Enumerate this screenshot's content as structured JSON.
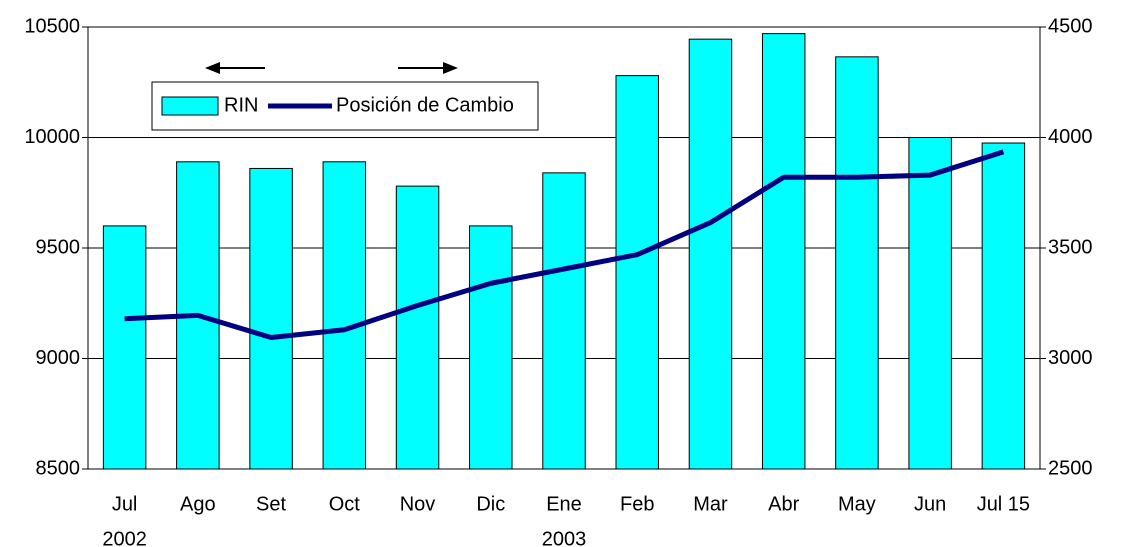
{
  "chart_data": {
    "type": "bar_line",
    "categories": [
      "Jul",
      "Ago",
      "Set",
      "Oct",
      "Nov",
      "Dic",
      "Ene",
      "Feb",
      "Mar",
      "Abr",
      "May",
      "Jun",
      "Jul 15"
    ],
    "x_sublabels": [
      "2002",
      null,
      null,
      null,
      null,
      null,
      "2003",
      null,
      null,
      null,
      null,
      null,
      null
    ],
    "series": [
      {
        "name": "RIN",
        "type": "bar",
        "color": "#00ffff",
        "axis": "y",
        "values": [
          9600,
          9890,
          9860,
          9890,
          9780,
          9600,
          9840,
          10280,
          10445,
          10470,
          10365,
          10000,
          9975
        ]
      },
      {
        "name": "Posición de Cambio",
        "type": "line",
        "color": "#000080",
        "axis": "y2",
        "values": [
          3180,
          3195,
          3095,
          3130,
          3240,
          3340,
          3405,
          3470,
          3615,
          3820,
          3820,
          3830,
          3935
        ]
      }
    ],
    "ylim": [
      8500,
      10500
    ],
    "yticks": [
      8500,
      9000,
      9500,
      10000,
      10500
    ],
    "y2lim": [
      2500,
      4500
    ],
    "y2ticks": [
      2500,
      3000,
      3500,
      4000,
      4500
    ],
    "grid": true
  }
}
